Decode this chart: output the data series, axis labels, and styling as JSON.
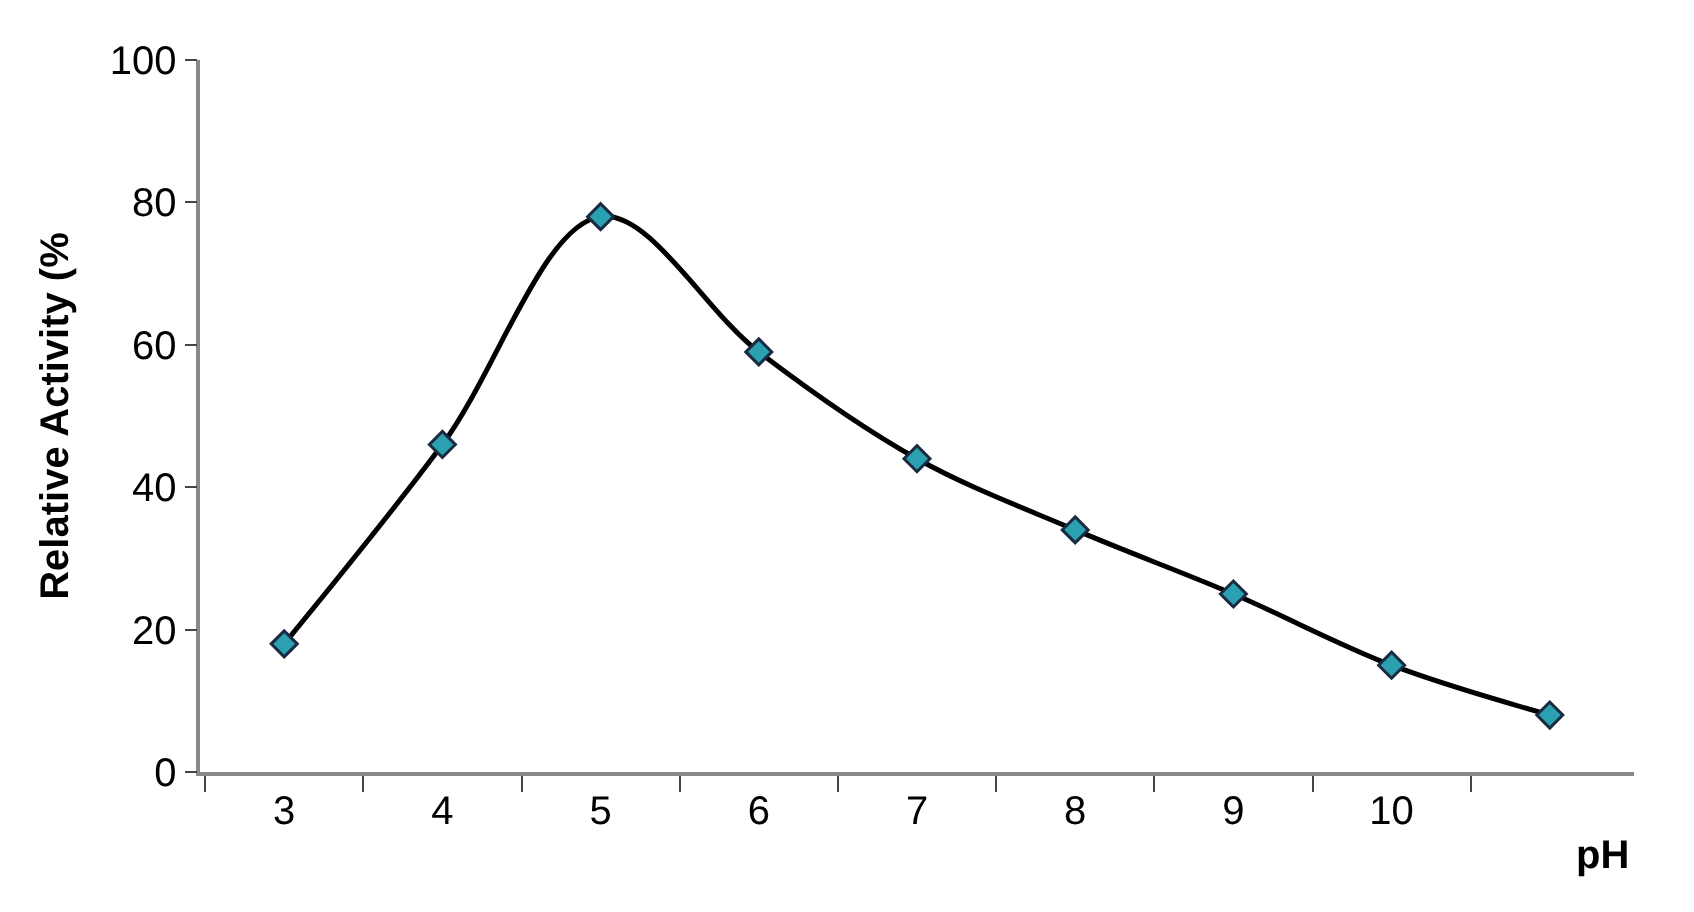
{
  "chart_data": {
    "type": "line",
    "xlabel": "pH",
    "ylabel": "Relative Activity (%",
    "categories": [
      "3",
      "4",
      "5",
      "6",
      "7",
      "8",
      "9",
      "10",
      null
    ],
    "series": [
      {
        "color": "#000000",
        "values": [
          18,
          46,
          78,
          59,
          44,
          34,
          25,
          15,
          8
        ]
      }
    ],
    "ylim": [
      0,
      100
    ],
    "yticks": [
      0,
      20,
      40,
      60,
      80,
      100
    ],
    "marker": "diamond",
    "line_style": "solid"
  }
}
